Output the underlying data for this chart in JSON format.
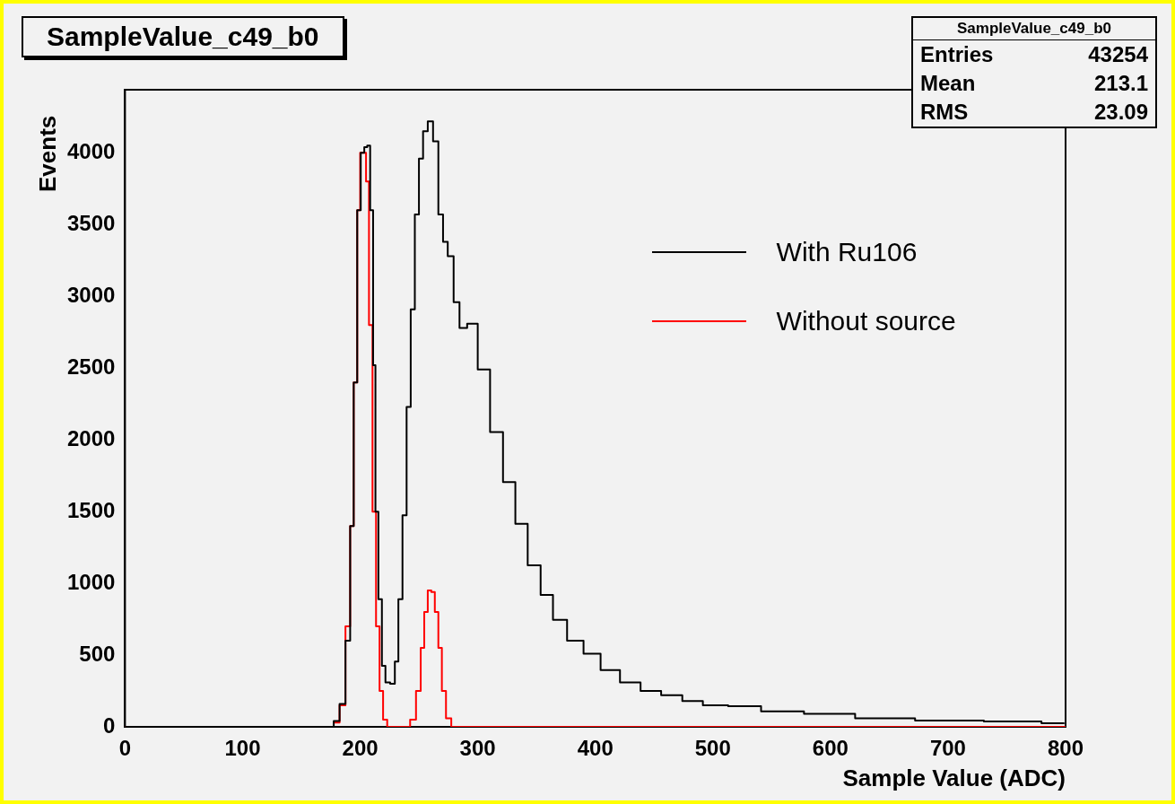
{
  "chart_data": {
    "type": "step",
    "title": "SampleValue_c49_b0",
    "xlabel": "Sample Value (ADC)",
    "ylabel": "Events",
    "annotations": [
      "SampleValue_c49_b0",
      "Entries 43254",
      "Mean 213.1",
      "RMS 23.09"
    ],
    "xlim": [
      0,
      800
    ],
    "xticks": [
      0,
      100,
      200,
      300,
      400,
      500,
      600,
      700,
      800
    ],
    "ylim": [
      0,
      4440
    ],
    "yticks": [
      0,
      500,
      1000,
      1500,
      2000,
      2500,
      3000,
      3500,
      4000
    ],
    "grid": false,
    "legend": "right",
    "series": [
      {
        "name": "With Ru106",
        "color": "#000000",
        "x": [
          0,
          175,
          180,
          185,
          190,
          193,
          196,
          199,
          202,
          205,
          207,
          210,
          212,
          214,
          217,
          220,
          223,
          228,
          231,
          234,
          238,
          241,
          245,
          248,
          252,
          255,
          260,
          264,
          269,
          272,
          277,
          282,
          287,
          295,
          305,
          316,
          327,
          337,
          348,
          359,
          369,
          383,
          397,
          412,
          430,
          447,
          465,
          483,
          500,
          526,
          556,
          599,
          643,
          701,
          760,
          799
        ],
        "values": [
          0,
          0,
          40,
          160,
          600,
          1400,
          2400,
          3600,
          4000,
          4040,
          4050,
          3600,
          2520,
          1500,
          890,
          425,
          310,
          300,
          455,
          890,
          1475,
          2230,
          2910,
          3570,
          3960,
          4150,
          4220,
          4080,
          3570,
          3380,
          3280,
          2960,
          2780,
          2810,
          2490,
          2055,
          1705,
          1415,
          1125,
          920,
          745,
          600,
          510,
          396,
          310,
          250,
          220,
          180,
          150,
          144,
          108,
          91,
          60,
          44,
          37,
          25
        ]
      },
      {
        "name": "Without source",
        "color": "#ff0000",
        "x": [
          0,
          175,
          180,
          185,
          190,
          193,
          196,
          199,
          201,
          204,
          206,
          209,
          212,
          215,
          218,
          221,
          225,
          240,
          245,
          250,
          253,
          256,
          259,
          262,
          265,
          268,
          271,
          275,
          280,
          800
        ],
        "values": [
          0,
          0,
          30,
          150,
          700,
          1400,
          2400,
          3600,
          4000,
          4000,
          3800,
          2800,
          1500,
          700,
          250,
          50,
          0,
          0,
          50,
          250,
          550,
          800,
          950,
          940,
          800,
          550,
          250,
          60,
          0,
          0
        ]
      }
    ]
  }
}
